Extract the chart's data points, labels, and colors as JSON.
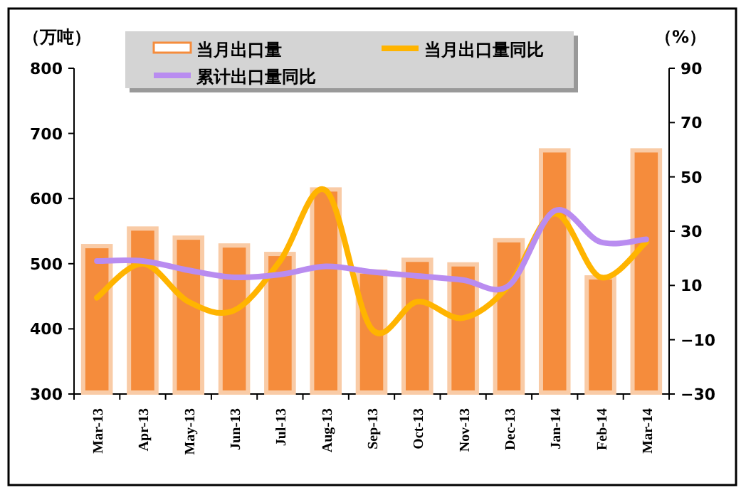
{
  "chart_data": {
    "type": "bar",
    "ylabel": "（万吨）",
    "y2label": "（%）",
    "categories": [
      "Mar-13",
      "Apr-13",
      "May-13",
      "Jun-13",
      "Jul-13",
      "Aug-13",
      "Sep-13",
      "Oct-13",
      "Nov-13",
      "Dec-13",
      "Jan-14",
      "Feb-14",
      "Mar-14"
    ],
    "series": [
      {
        "name": "当月出口量",
        "color": "#f58c3c",
        "values": [
          527,
          554,
          540,
          528,
          515,
          614,
          488,
          506,
          499,
          536,
          674,
          479,
          674
        ]
      },
      {
        "name": "当月出口量同比",
        "type": "line",
        "axis": "y2",
        "color": "#ffb400",
        "values": [
          5.5,
          18,
          4,
          0.8,
          19,
          45,
          -6,
          4,
          -2,
          10,
          36.5,
          13,
          26
        ]
      },
      {
        "name": "累计出口量同比",
        "type": "line",
        "axis": "y2",
        "color": "#b98cf0",
        "values": [
          19,
          19,
          15.6,
          13,
          14,
          17,
          15,
          13.5,
          12,
          10,
          37.5,
          26,
          27
        ]
      }
    ],
    "ylim": [
      300,
      800
    ],
    "yticks": [
      300,
      400,
      500,
      600,
      700,
      800
    ],
    "y2lim": [
      -30,
      90
    ],
    "y2ticks": [
      -30,
      -10,
      10,
      30,
      50,
      70,
      90
    ],
    "legend": "top",
    "grid": false,
    "marker": "none",
    "line_style": "solid"
  }
}
